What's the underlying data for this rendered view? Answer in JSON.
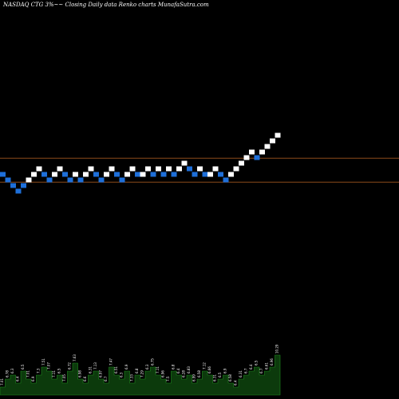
{
  "title": "NASDAQ CTG 3%~~ Closing Daily data  Renko  charts MunafaSutra.com",
  "colors": {
    "background": "#000000",
    "up_brick": "#ffffff",
    "down_brick": "#1e6fd9",
    "hline": "#8b4a1a",
    "volume_fill": "#0c3a0c",
    "volume_line": "#1f8a1f"
  },
  "chart_data": [
    {
      "type": "renko",
      "title": "NASDAQ CTG 3%~~ Closing Daily data  Renko  charts MunafaSutra.com",
      "brick_levels": [
        0,
        -1,
        -2,
        -3,
        -2,
        -1,
        0,
        1,
        0,
        -1,
        0,
        1,
        0,
        -1,
        0,
        -1,
        0,
        1,
        0,
        -1,
        0,
        1,
        0,
        -1,
        0,
        1,
        0,
        0,
        1,
        0,
        1,
        0,
        1,
        0,
        1,
        2,
        1,
        0,
        1,
        0,
        0,
        1,
        0,
        -1,
        0,
        1,
        2,
        3,
        4,
        3,
        4,
        5,
        6,
        7
      ],
      "brick_colors": [
        "down",
        "down",
        "down",
        "down",
        "down",
        "up",
        "up",
        "up",
        "down",
        "down",
        "up",
        "up",
        "down",
        "down",
        "up",
        "down",
        "up",
        "up",
        "down",
        "down",
        "up",
        "up",
        "down",
        "down",
        "up",
        "up",
        "down",
        "up",
        "up",
        "down",
        "up",
        "down",
        "up",
        "down",
        "up",
        "up",
        "down",
        "down",
        "up",
        "down",
        "up",
        "up",
        "down",
        "down",
        "up",
        "up",
        "up",
        "up",
        "up",
        "down",
        "up",
        "up",
        "up",
        "up"
      ],
      "horizontal_lines": [
        -1.4,
        2.9
      ]
    },
    {
      "type": "bar",
      "series_label": "volume",
      "values": [
        0.2,
        0.4,
        0.5,
        0.3,
        0.6,
        0.4,
        0.3,
        0.5,
        0.7,
        0.6,
        0.4,
        0.5,
        0.3,
        0.6,
        0.8,
        0.4,
        0.3,
        0.5,
        0.6,
        0.4,
        0.3,
        0.7,
        0.5,
        0.4,
        0.6,
        0.3,
        0.5,
        0.4,
        0.6,
        0.7,
        0.5,
        0.4,
        0.3,
        0.6,
        0.5,
        0.4,
        0.5,
        0.3,
        0.4,
        0.6,
        0.5,
        0.3,
        0.4,
        0.5,
        0.3,
        0.2,
        0.4,
        0.5,
        0.6,
        0.7,
        0.5,
        0.6,
        0.7,
        1.0
      ],
      "labels": [
        "7.01",
        "6.78",
        "6.3",
        "6.4",
        "6.5",
        "7.01",
        "6.9",
        "7.3",
        "7.51",
        "7.07",
        "7.11",
        "6.5",
        "7.05",
        "6.72",
        "7.63",
        "6.98",
        "6.6",
        "6.31",
        "7.13",
        "6.97",
        "6.7",
        "7.47",
        "6.51",
        "6.3",
        "6.9",
        "7.33",
        "6.8",
        "7.29",
        "6.3",
        "6.75",
        "7.11",
        "6.96",
        "7.5",
        "6.8",
        "6.4",
        "6.28",
        "6.83",
        "6.99",
        "6.58",
        "7.12",
        "6.66",
        "6.31",
        "6.5",
        "6.9",
        "6.58",
        "6.4",
        "6.31",
        "6.7",
        "6.4",
        "6.5",
        "6.7",
        "6.61",
        "6.96",
        "10.29"
      ]
    }
  ]
}
